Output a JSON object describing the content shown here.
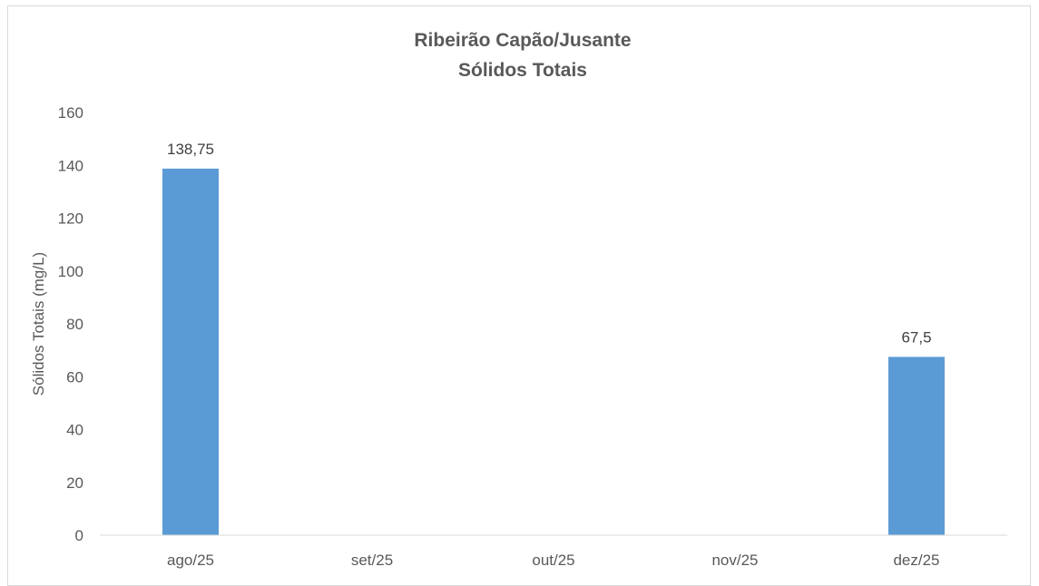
{
  "chart_data": {
    "type": "bar",
    "title": "Ribeirão Capão/Jusante",
    "subtitle": "Sólidos Totais",
    "xlabel": "",
    "ylabel": "Sólidos Totais (mg/L)",
    "categories": [
      "ago/25",
      "set/25",
      "out/25",
      "nov/25",
      "dez/25"
    ],
    "values": [
      138.75,
      null,
      null,
      null,
      67.5
    ],
    "data_labels": [
      "138,75",
      "",
      "",
      "",
      "67,5"
    ],
    "ylim": [
      0,
      160
    ],
    "yticks": [
      0,
      20,
      40,
      60,
      80,
      100,
      120,
      140,
      160
    ],
    "grid": false,
    "legend": "none",
    "bar_color": "#5b9bd5"
  }
}
